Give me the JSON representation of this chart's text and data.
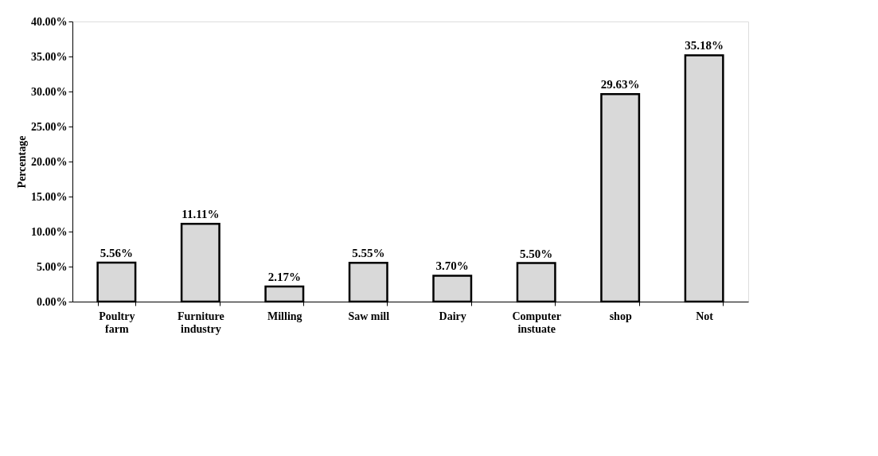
{
  "chart_data": {
    "type": "bar",
    "ylabel": "Percentage",
    "categories": [
      "Poultry farm",
      "Furniture industry",
      "Milling",
      "Saw mill",
      "Dairy",
      "Computer instuate",
      "shop",
      "Not"
    ],
    "values": [
      5.56,
      11.11,
      2.17,
      5.55,
      3.7,
      5.5,
      29.63,
      35.18
    ],
    "value_labels": [
      "5.56%",
      "11.11%",
      "2.17%",
      "5.55%",
      "3.70%",
      "5.50%",
      "29.63%",
      "35.18%"
    ],
    "color": "#d9d9d9",
    "ylim": [
      0,
      40
    ],
    "yticks": [
      {
        "value": 0,
        "label": "0.00%"
      },
      {
        "value": 5,
        "label": "5.00%"
      },
      {
        "value": 10,
        "label": "10.00%"
      },
      {
        "value": 15,
        "label": "15.00%"
      },
      {
        "value": 20,
        "label": "20.00%"
      },
      {
        "value": 25,
        "label": "25.00%"
      },
      {
        "value": 30,
        "label": "30.00%"
      },
      {
        "value": 35,
        "label": "35.00%"
      },
      {
        "value": 40,
        "label": "40.00%"
      }
    ],
    "grid": false
  }
}
